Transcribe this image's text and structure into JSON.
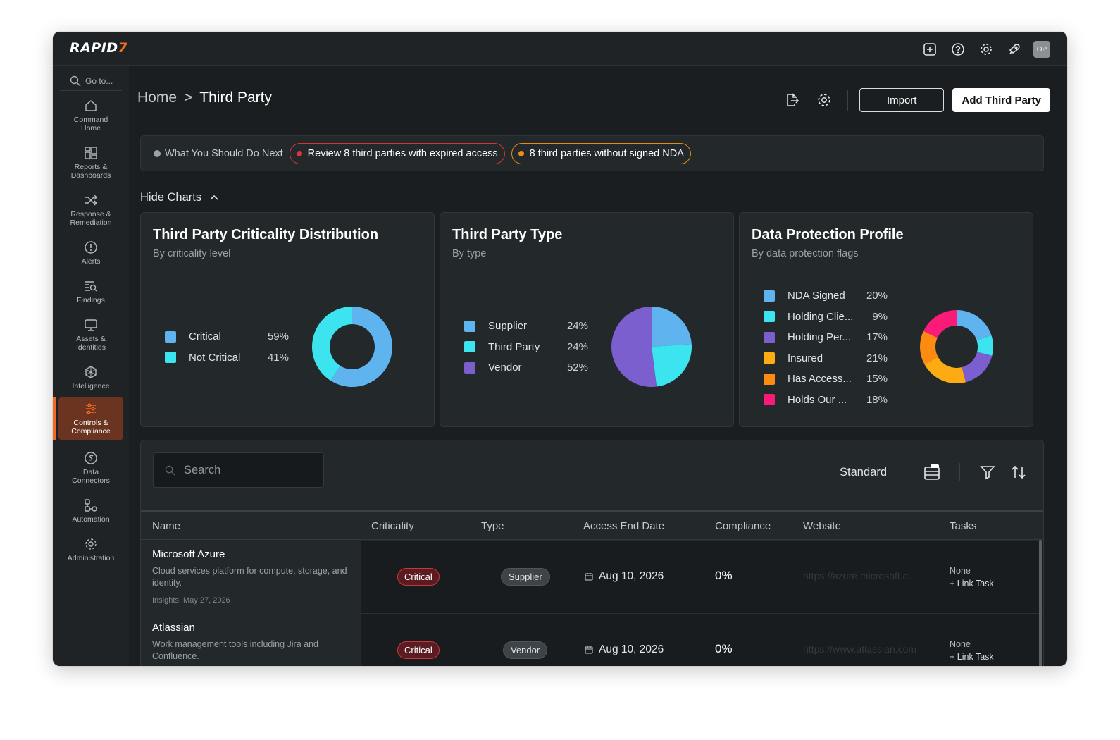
{
  "app": {
    "logo_main": "RAPID",
    "logo_mark": "7",
    "avatar_initials": "OP"
  },
  "sidebar": {
    "goto_placeholder": "Go to...",
    "items": [
      {
        "label_1": "Command",
        "label_2": "Home",
        "icon": "home-icon"
      },
      {
        "label_1": "Reports &",
        "label_2": "Dashboards",
        "icon": "dashboard-icon"
      },
      {
        "label_1": "Response &",
        "label_2": "Remediation",
        "icon": "shuffle-icon"
      },
      {
        "label_1": "Alerts",
        "label_2": "",
        "icon": "alert-icon"
      },
      {
        "label_1": "Findings",
        "label_2": "",
        "icon": "findings-icon"
      },
      {
        "label_1": "Assets &",
        "label_2": "Identities",
        "icon": "monitor-icon"
      },
      {
        "label_1": "Intelligence",
        "label_2": "",
        "icon": "intelligence-icon"
      },
      {
        "label_1": "Controls &",
        "label_2": "Compliance",
        "icon": "sliders-icon"
      },
      {
        "label_1": "Data",
        "label_2": "Connectors",
        "icon": "connector-icon"
      },
      {
        "label_1": "Automation",
        "label_2": "",
        "icon": "automation-icon"
      },
      {
        "label_1": "Administration",
        "label_2": "",
        "icon": "gear-icon"
      }
    ]
  },
  "breadcrumb": {
    "home": "Home",
    "separator": ">",
    "current": "Third Party"
  },
  "actions": {
    "import": "Import",
    "add": "Add Third Party"
  },
  "next_steps": {
    "label": "What You Should Do Next",
    "items": [
      {
        "text": "Review 8 third parties with expired access",
        "color": "#e5323a"
      },
      {
        "text": "8 third parties without signed NDA",
        "color": "#f08c1a"
      }
    ]
  },
  "charts_toggle": "Hide Charts",
  "chart_data": [
    {
      "type": "pie",
      "title": "Third Party Criticality Distribution",
      "subtitle": "By criticality level",
      "donut": true,
      "slices": [
        {
          "label": "Critical",
          "value": 59,
          "pct": "59%",
          "color": "#5fb4ef"
        },
        {
          "label": "Not Critical",
          "value": 41,
          "pct": "41%",
          "color": "#3be4ee"
        }
      ]
    },
    {
      "type": "pie",
      "title": "Third Party Type",
      "subtitle": "By type",
      "donut": false,
      "slices": [
        {
          "label": "Supplier",
          "value": 24,
          "pct": "24%",
          "color": "#5fb4ef"
        },
        {
          "label": "Third Party",
          "value": 24,
          "pct": "24%",
          "color": "#3be4ee"
        },
        {
          "label": "Vendor",
          "value": 52,
          "pct": "52%",
          "color": "#7b5fce"
        }
      ]
    },
    {
      "type": "pie",
      "title": "Data Protection Profile",
      "subtitle": "By data protection flags",
      "donut": true,
      "slices": [
        {
          "label": "NDA Signed",
          "value": 20,
          "pct": "20%",
          "color": "#5fb4ef"
        },
        {
          "label": "Holding Clie...",
          "value": 9,
          "pct": "9%",
          "color": "#3be4ee"
        },
        {
          "label": "Holding Per...",
          "value": 17,
          "pct": "17%",
          "color": "#7b5fce"
        },
        {
          "label": "Insured",
          "value": 21,
          "pct": "21%",
          "color": "#fcac12"
        },
        {
          "label": "Has Access...",
          "value": 15,
          "pct": "15%",
          "color": "#fb8b11"
        },
        {
          "label": "Holds Our ...",
          "value": 18,
          "pct": "18%",
          "color": "#fa1b78"
        }
      ]
    }
  ],
  "table": {
    "search_placeholder": "Search",
    "view": "Standard",
    "columns": [
      "Name",
      "Criticality",
      "Type",
      "Access End Date",
      "Compliance",
      "Website",
      "Tasks"
    ],
    "rows": [
      {
        "name": "Microsoft Azure",
        "description": "Cloud services platform for compute, storage, and identity.",
        "insights": "Insights: May 27, 2026",
        "criticality": "Critical",
        "type": "Supplier",
        "access_end": "Aug 10, 2026",
        "compliance": "0%",
        "website": "https://azure.microsoft.c...",
        "tasks": "None",
        "link_task": "+ Link Task"
      },
      {
        "name": "Atlassian",
        "description": "Work management tools including Jira and Confluence.",
        "insights": "",
        "criticality": "Critical",
        "type": "Vendor",
        "access_end": "Aug 10, 2026",
        "compliance": "0%",
        "website": "https://www.atlassian.com",
        "tasks": "None",
        "link_task": "+ Link Task"
      }
    ]
  }
}
